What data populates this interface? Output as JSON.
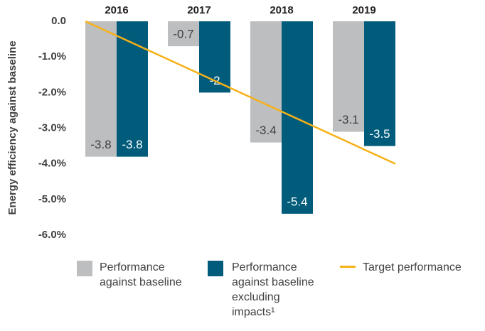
{
  "chart_data": {
    "type": "bar",
    "y_label": "Energy efficiency against baseline",
    "categories": [
      "2016",
      "2017",
      "2018",
      "2019"
    ],
    "series": [
      {
        "name": "Performance against baseline",
        "color": "#bcbec0",
        "label_color": "#414042",
        "values": [
          -3.8,
          -0.7,
          -3.4,
          -3.1
        ]
      },
      {
        "name": "Performance against baseline excluding impacts¹",
        "color": "#005c7a",
        "label_color": "#ffffff",
        "values": [
          -3.8,
          -2.0,
          -5.4,
          -3.5
        ]
      }
    ],
    "target": {
      "name": "Target performance",
      "color": "#f7b118",
      "values": [
        0,
        -4
      ]
    },
    "ylim": [
      -6,
      0
    ],
    "yticks": [
      {
        "value": 0,
        "label": "0.0"
      },
      {
        "value": -1,
        "label": "-1.0%"
      },
      {
        "value": -2,
        "label": "-2.0%"
      },
      {
        "value": -3,
        "label": "-3.0%"
      },
      {
        "value": -4,
        "label": "-4.0%"
      },
      {
        "value": -5,
        "label": "-5.0%"
      },
      {
        "value": -6,
        "label": "-6.0%"
      }
    ]
  }
}
